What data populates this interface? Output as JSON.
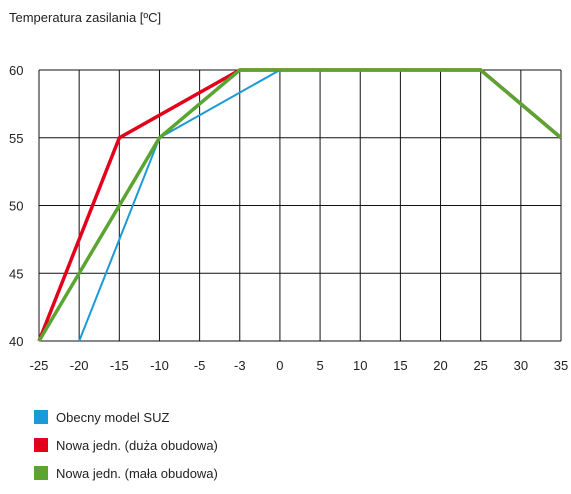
{
  "chart_data": {
    "type": "line",
    "title": "Temperatura zasilania [ºC]",
    "x_ticks": [
      -25,
      -20,
      -15,
      -10,
      -5,
      -3,
      0,
      5,
      10,
      15,
      20,
      25,
      30,
      35
    ],
    "y_ticks": [
      40,
      45,
      50,
      55,
      60
    ],
    "ylim": [
      40,
      60
    ],
    "grid": true,
    "legend_position": "bottom-left",
    "series": [
      {
        "name": "Obecny model SUZ",
        "color": "#1a9ad6",
        "x": [
          -20,
          -10,
          0,
          25,
          35
        ],
        "y": [
          40,
          55,
          60,
          60,
          55
        ]
      },
      {
        "name": "Nowa jedn. (duża obudowa)",
        "color": "#e3001b",
        "x": [
          -25,
          -15,
          -3,
          25,
          35
        ],
        "y": [
          40,
          55,
          60,
          60,
          55
        ]
      },
      {
        "name": "Nowa jedn. (mała obudowa)",
        "color": "#5aa532",
        "x": [
          -25,
          -10,
          -3,
          25,
          35
        ],
        "y": [
          40,
          55,
          60,
          60,
          55
        ]
      }
    ]
  }
}
